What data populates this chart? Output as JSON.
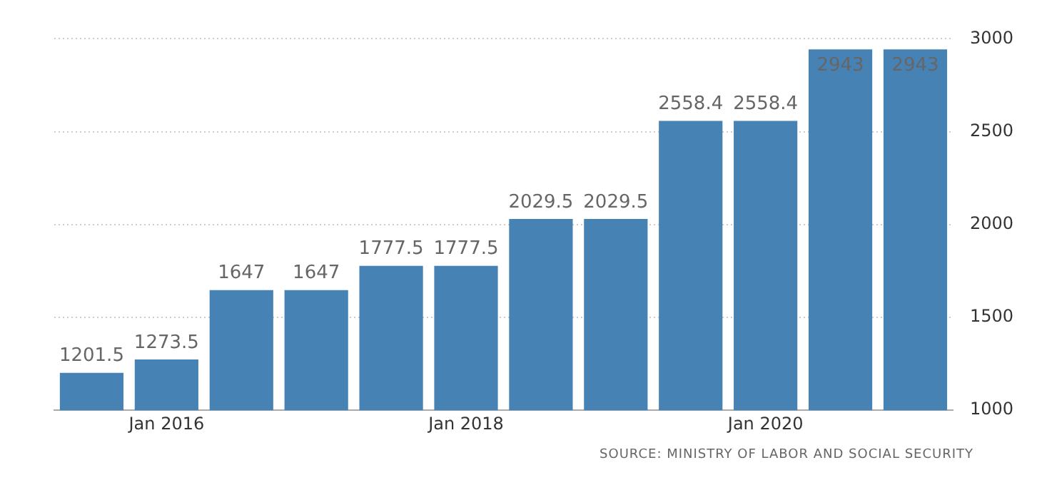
{
  "chart_data": {
    "type": "bar",
    "categories": [
      null,
      "Jan 2016",
      null,
      null,
      null,
      "Jan 2018",
      null,
      null,
      null,
      "Jan 2020",
      null,
      null
    ],
    "values": [
      1201.5,
      1273.5,
      1647,
      1647,
      1777.5,
      1777.5,
      2029.5,
      2029.5,
      2558.4,
      2558.4,
      2943,
      2943
    ],
    "color": "#4682b4",
    "ylim": [
      1000,
      3000
    ],
    "yticks": [
      1000,
      1500,
      2000,
      2500,
      3000
    ],
    "grid": "y",
    "data_labels": true,
    "legend": false,
    "annotations": [
      "SOURCE: MINISTRY OF LABOR AND SOCIAL SECURITY"
    ]
  }
}
